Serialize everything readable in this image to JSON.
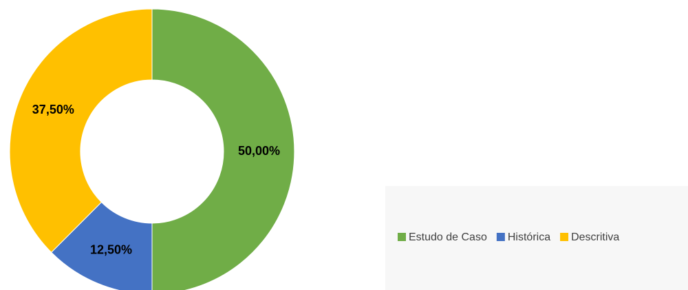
{
  "chart_data": {
    "type": "donut",
    "categories": [
      "Estudo de Caso",
      "Histórica",
      "Descritiva"
    ],
    "values": [
      50,
      12.5,
      37.5
    ],
    "value_labels": [
      "50,00%",
      "12,50%",
      "37,50%"
    ],
    "colors": [
      "#70ad47",
      "#4472c4",
      "#ffc000"
    ],
    "legend": "bottom-right"
  }
}
